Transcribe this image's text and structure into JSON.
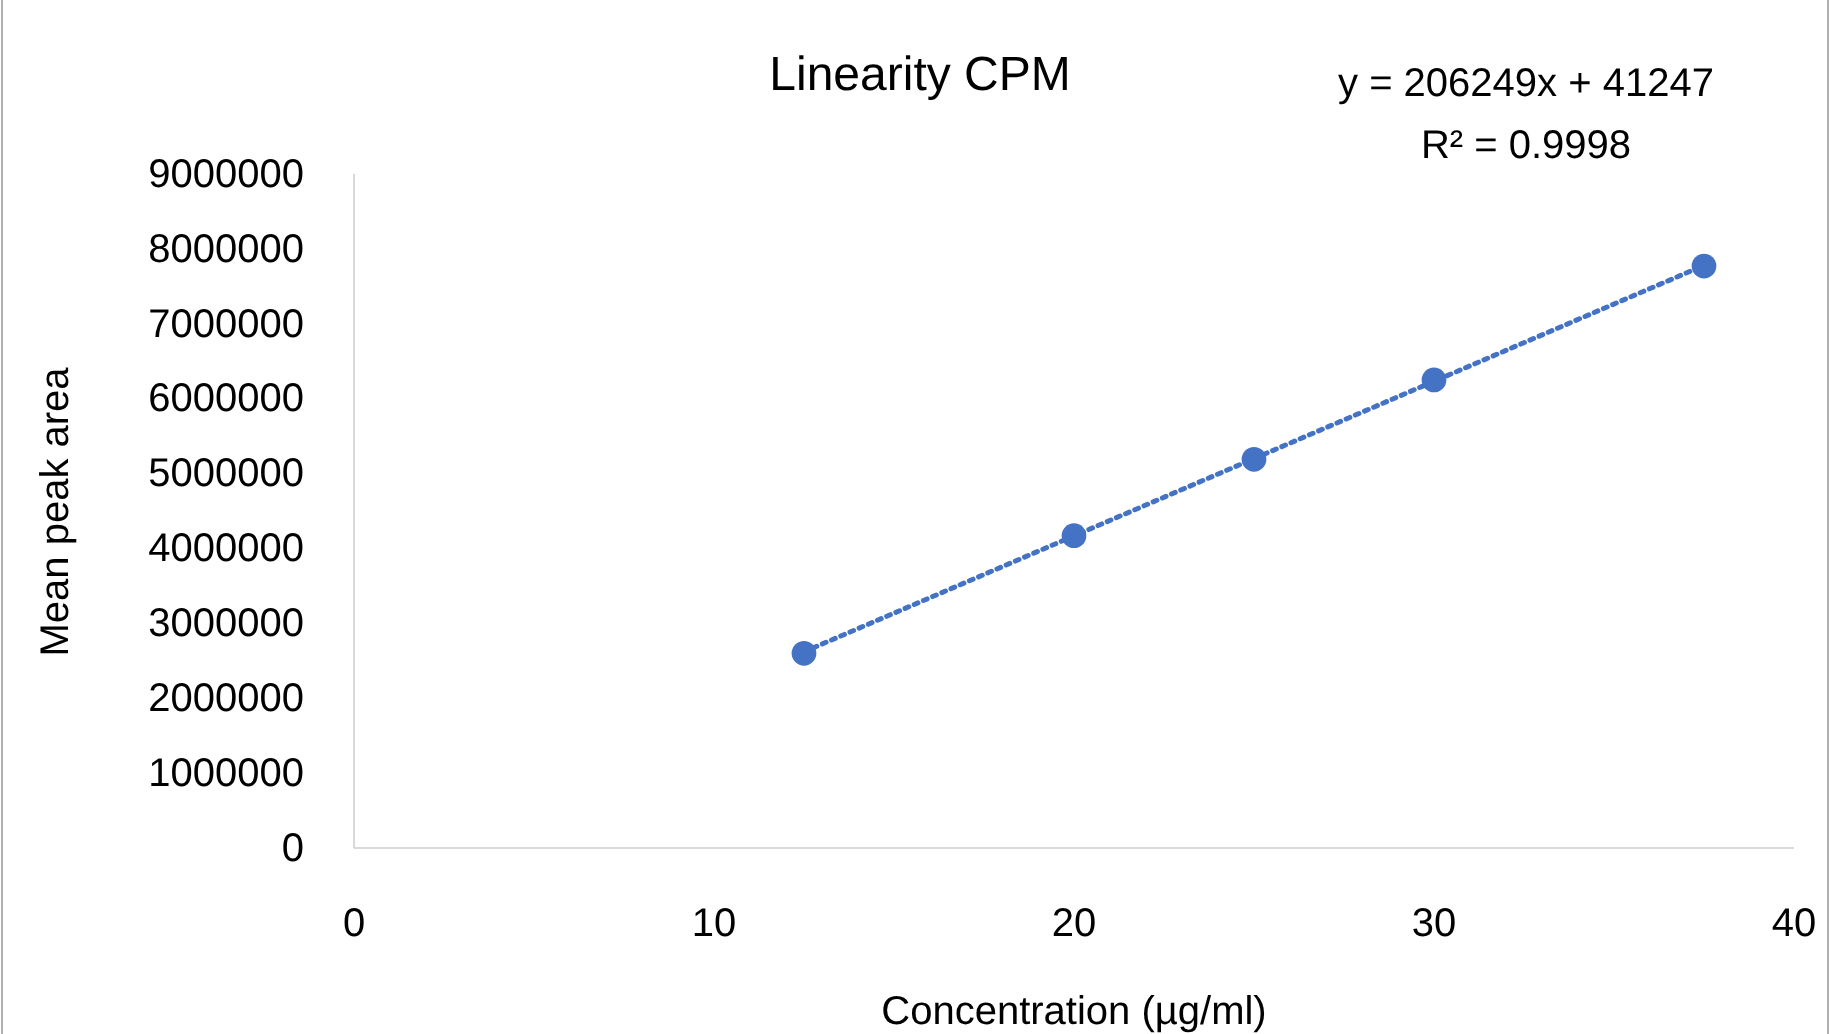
{
  "chart_data": {
    "type": "scatter",
    "title": "Linearity CPM",
    "xlabel": "Concentration (µg/ml)",
    "ylabel": "Mean peak area",
    "annotations": [
      "y = 206249x + 41247",
      "R² = 0.9998"
    ],
    "x": [
      12.5,
      20,
      25,
      30,
      37.5
    ],
    "series": [
      {
        "type": "scatter",
        "color": "#4472c4",
        "marker": "circle",
        "values": [
          2600000,
          4170000,
          5190000,
          6250000,
          7770000
        ]
      },
      {
        "type": "line",
        "color": "#4472c4",
        "line_style": "dotted",
        "x": [
          12.5,
          37.5
        ],
        "values": [
          2620000,
          7780000
        ]
      }
    ],
    "xlim": [
      0,
      40
    ],
    "xticks": [
      0,
      10,
      20,
      30,
      40
    ],
    "ylim": [
      0,
      9000000
    ],
    "yticks": [
      0,
      1000000,
      2000000,
      3000000,
      4000000,
      5000000,
      6000000,
      7000000,
      8000000,
      9000000
    ],
    "grid": false
  }
}
